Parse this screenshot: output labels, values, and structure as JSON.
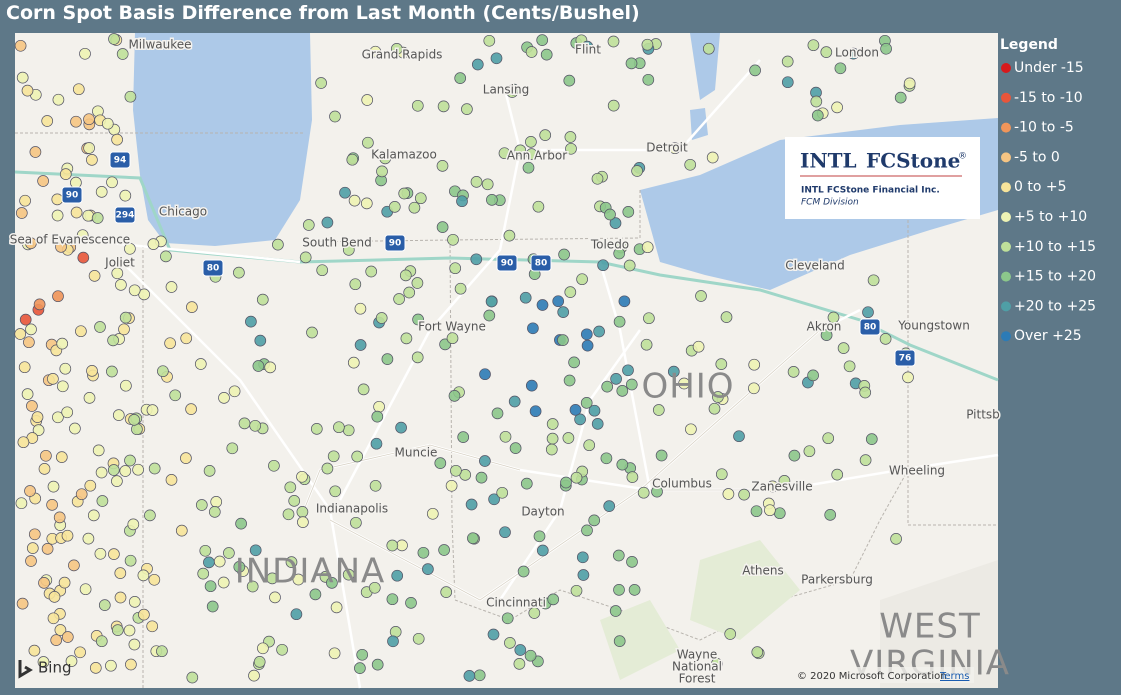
{
  "title": "Corn Spot Basis Difference from Last Month (Cents/Bushel)",
  "legend": {
    "title": "Legend",
    "items": [
      {
        "label": "Under -15",
        "color": "#d7191c"
      },
      {
        "label": "-15 to -10",
        "color": "#e8553a"
      },
      {
        "label": "-10 to -5",
        "color": "#f0955a"
      },
      {
        "label": "-5 to 0",
        "color": "#f6c583"
      },
      {
        "label": "0 to +5",
        "color": "#f7e49a"
      },
      {
        "label": "+5 to +10",
        "color": "#eef3b4"
      },
      {
        "label": "+10 to +15",
        "color": "#bfe09a"
      },
      {
        "label": "+15 to +20",
        "color": "#8cc78b"
      },
      {
        "label": "+20 to +25",
        "color": "#4f9fa6"
      },
      {
        "label": "Over +25",
        "color": "#2c7bb6"
      }
    ]
  },
  "logo": {
    "brand_a": "INTL",
    "brand_b": "FCStone",
    "reg": "®",
    "company": "INTL FCStone Financial Inc.",
    "division": "FCM Division"
  },
  "cities": [
    "Milwaukee",
    "Grand Rapids",
    "Flint",
    "London",
    "Lansing",
    "Kalamazoo",
    "Ann Arbor",
    "Detroit",
    "Chicago",
    "Sea of Evanescence",
    "South Bend",
    "Toledo",
    "Joliet",
    "Cleveland",
    "Fort Wayne",
    "Akron",
    "Youngstown",
    "Pittsb",
    "Muncie",
    "Wheeling",
    "Columbus",
    "Zanesville",
    "Indianapolis",
    "Dayton",
    "Athens",
    "Parkersburg",
    "Cincinnati",
    "Wayne",
    "National",
    "Forest"
  ],
  "states": [
    "OHIO",
    "INDIANA",
    "WEST",
    "VIRGINIA"
  ],
  "highways": [
    "94",
    "90",
    "294",
    "90",
    "80",
    "90",
    "80",
    "80",
    "76"
  ],
  "attribution": {
    "provider": "Bing",
    "copyright": "© 2020 Microsoft Corporation",
    "terms": "Terms"
  }
}
